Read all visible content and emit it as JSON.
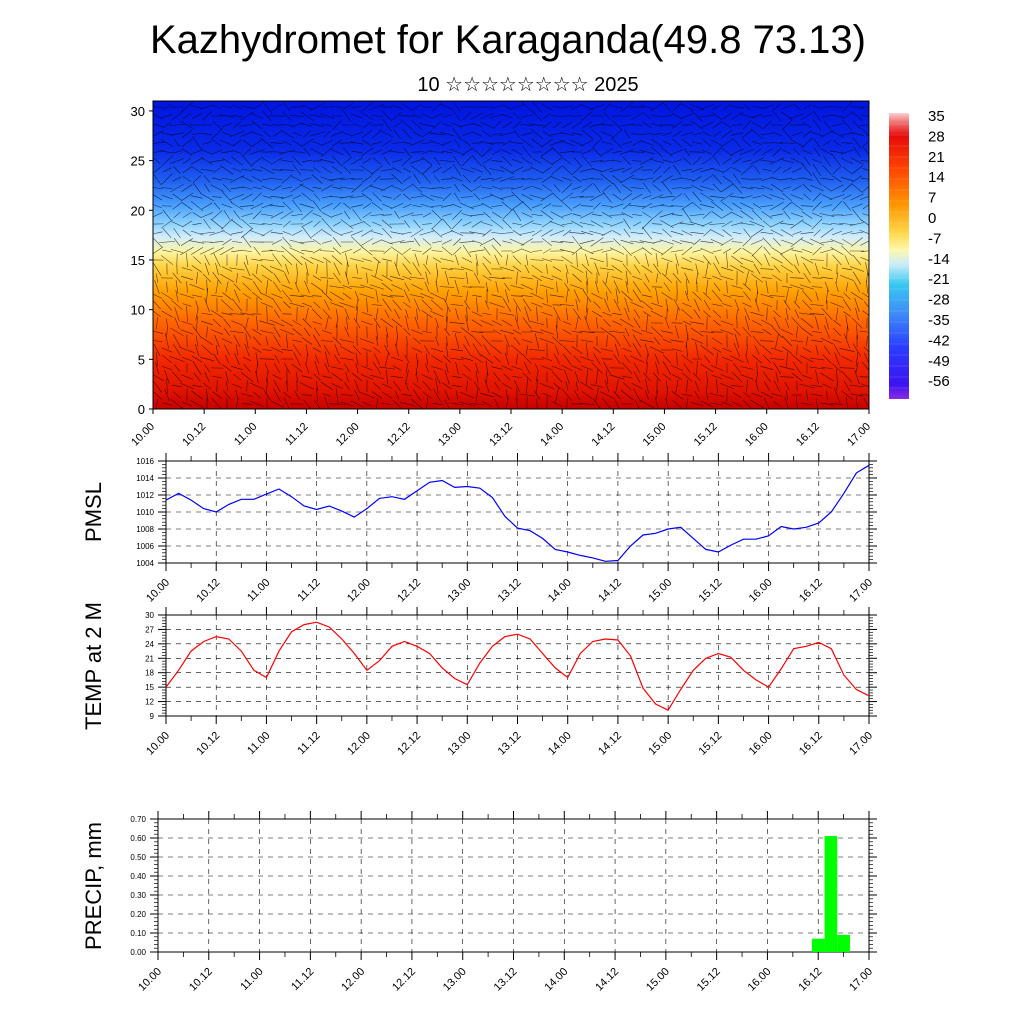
{
  "header": {
    "title": "Kazhydromet for Karaganda(49.8 73.13)",
    "subtitle": "10 ☆☆☆☆☆☆☆☆ 2025"
  },
  "time_labels": [
    "10.00",
    "10.12",
    "11.00",
    "11.12",
    "12.00",
    "12.12",
    "13.00",
    "13.12",
    "14.00",
    "14.12",
    "15.00",
    "15.12",
    "16.00",
    "16.12",
    "17.00"
  ],
  "chart_data": [
    {
      "type": "heatmap",
      "y_ticks": [
        0,
        5,
        10,
        15,
        20,
        25,
        30
      ],
      "ylim": [
        0,
        31
      ],
      "colorbar": {
        "labels": [
          "35",
          "28",
          "21",
          "14",
          "7",
          "0",
          "-7",
          "-14",
          "-21",
          "-28",
          "-35",
          "-42",
          "-49",
          "-56"
        ]
      }
    },
    {
      "type": "line",
      "ylabel": "PMSL",
      "ylim": [
        1004,
        1016
      ],
      "y_ticks": [
        "1004",
        "1006",
        "1008",
        "1010",
        "1012",
        "1014",
        "1016"
      ],
      "color": "#0000ff",
      "x": [
        0,
        3,
        6,
        9,
        12,
        15,
        18,
        21,
        24,
        27,
        30,
        33,
        36,
        39,
        42,
        45,
        48,
        51,
        54,
        57,
        60,
        63,
        66,
        69,
        72,
        75,
        78,
        81,
        84,
        87,
        90,
        93,
        96,
        99,
        102,
        105,
        108,
        111,
        114,
        117,
        120,
        123,
        126,
        129,
        132,
        135,
        138,
        141,
        144,
        147,
        150,
        153,
        156,
        159,
        162,
        165,
        168
      ],
      "values": [
        1011.4,
        1012.2,
        1011.4,
        1010.4,
        1010.0,
        1010.9,
        1011.5,
        1011.5,
        1012.1,
        1012.7,
        1011.8,
        1010.7,
        1010.3,
        1010.7,
        1010.1,
        1009.4,
        1010.4,
        1011.6,
        1011.8,
        1011.5,
        1012.5,
        1013.5,
        1013.7,
        1012.9,
        1013.0,
        1012.8,
        1011.7,
        1009.5,
        1008.1,
        1007.8,
        1006.9,
        1005.6,
        1005.3,
        1004.9,
        1004.6,
        1004.2,
        1004.3,
        1006.0,
        1007.3,
        1007.5,
        1008.0,
        1008.2,
        1006.9,
        1005.6,
        1005.3,
        1006.1,
        1006.8,
        1006.8,
        1007.2,
        1008.3,
        1008.0,
        1008.2,
        1008.7,
        1010.0,
        1012.2,
        1014.6,
        1015.5
      ]
    },
    {
      "type": "line",
      "ylabel": "TEMP at 2 M",
      "ylim": [
        9,
        30
      ],
      "y_ticks": [
        "9",
        "12",
        "15",
        "18",
        "21",
        "24",
        "27",
        "30"
      ],
      "color": "#ff0000",
      "x": [
        0,
        3,
        6,
        9,
        12,
        15,
        18,
        21,
        24,
        27,
        30,
        33,
        36,
        39,
        42,
        45,
        48,
        51,
        54,
        57,
        60,
        63,
        66,
        69,
        72,
        75,
        78,
        81,
        84,
        87,
        90,
        93,
        96,
        99,
        102,
        105,
        108,
        111,
        114,
        117,
        120,
        123,
        126,
        129,
        132,
        135,
        138,
        141,
        144,
        147,
        150,
        153,
        156,
        159,
        162,
        165,
        168
      ],
      "values": [
        15.0,
        18.5,
        22.5,
        24.5,
        25.5,
        25.0,
        22.5,
        18.5,
        17.0,
        22.5,
        26.5,
        28.0,
        28.5,
        27.5,
        25.0,
        22.0,
        18.5,
        20.5,
        23.5,
        24.5,
        23.5,
        22.0,
        19.0,
        16.8,
        15.5,
        20.0,
        23.5,
        25.5,
        26.0,
        25.0,
        22.0,
        19.0,
        17.0,
        22.0,
        24.5,
        25.0,
        24.8,
        21.5,
        14.8,
        11.5,
        10.2,
        14.5,
        18.5,
        21.0,
        22.0,
        21.2,
        18.5,
        16.5,
        15.0,
        18.8,
        23.0,
        23.5,
        24.3,
        23.0,
        17.5,
        14.5,
        13.2
      ]
    },
    {
      "type": "bar",
      "ylabel": "PRECIP, mm",
      "ylim": [
        0,
        0.7
      ],
      "y_ticks": [
        "0.00",
        "0.10",
        "0.20",
        "0.30",
        "0.40",
        "0.50",
        "0.60",
        "0.70"
      ],
      "color": "#00ff00",
      "x": [
        153,
        156,
        159,
        162,
        165,
        168
      ],
      "values": [
        0,
        0.07,
        0.61,
        0.09,
        0,
        0
      ]
    }
  ]
}
